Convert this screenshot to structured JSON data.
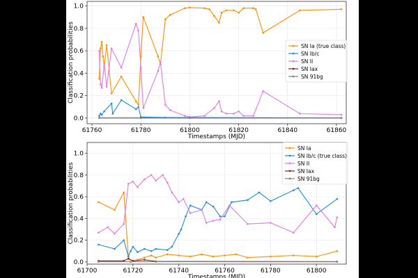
{
  "chart_data": [
    {
      "type": "line",
      "title": "",
      "xlabel": "Timestamps (MJD)",
      "ylabel": "Classification probabilities",
      "xlim": [
        61758,
        61864
      ],
      "ylim": [
        -0.05,
        1.04
      ],
      "xticks": [
        61760,
        61780,
        61800,
        61820,
        61840,
        61860
      ],
      "yticks": [
        0.0,
        0.2,
        0.4,
        0.6,
        0.8,
        1.0
      ],
      "grid": true,
      "legend_position": "center-right",
      "series": [
        {
          "name": "SN Ia (true class)",
          "color": "#ff8c00",
          "x": [
            61763,
            61763.5,
            61764,
            61764.5,
            61765,
            61766,
            61768,
            61772,
            61778,
            61779,
            61780,
            61781,
            61787,
            61788,
            61790,
            61792,
            61798,
            61800,
            61806,
            61808,
            61810,
            61812,
            61813,
            61815,
            61818,
            61820,
            61822,
            61826,
            61827,
            61830,
            61845,
            61862
          ],
          "y": [
            0.35,
            0.62,
            0.68,
            0.55,
            0.46,
            0.65,
            0.22,
            0.37,
            0.15,
            0.12,
            0.55,
            0.9,
            0.55,
            0.48,
            0.88,
            0.92,
            0.98,
            0.985,
            0.98,
            0.97,
            0.91,
            0.85,
            0.94,
            0.96,
            0.96,
            0.94,
            0.98,
            0.98,
            0.97,
            0.76,
            0.96,
            0.97
          ]
        },
        {
          "name": "SN Ib/c",
          "color": "#1f8ad6",
          "x": [
            61763,
            61763.5,
            61764,
            61765,
            61768,
            61768.5,
            61772,
            61778,
            61779,
            61780,
            61790,
            61800,
            61862
          ],
          "y": [
            0.02,
            0.04,
            0.03,
            0.06,
            0.13,
            0.04,
            0.16,
            0.08,
            0.1,
            0.01,
            0.005,
            0.005,
            0.002
          ]
        },
        {
          "name": "SN II",
          "color": "#e278e6",
          "x": [
            61763,
            61763.5,
            61764,
            61765,
            61766,
            61768,
            61772,
            61778,
            61779,
            61780,
            61781,
            61787,
            61788,
            61790,
            61792,
            61798,
            61800,
            61806,
            61810,
            61812,
            61813,
            61815,
            61818,
            61820,
            61822,
            61826,
            61830,
            61845,
            61862
          ],
          "y": [
            0.6,
            0.3,
            0.27,
            0.48,
            0.28,
            0.62,
            0.45,
            0.84,
            0.78,
            0.45,
            0.09,
            0.42,
            0.5,
            0.12,
            0.07,
            0.02,
            0.01,
            0.02,
            0.09,
            0.15,
            0.06,
            0.04,
            0.04,
            0.06,
            0.02,
            0.02,
            0.24,
            0.04,
            0.03
          ]
        },
        {
          "name": "SN Iax",
          "color": "#8b1a1a",
          "x": [
            61763,
            61780,
            61800,
            61862
          ],
          "y": [
            0.002,
            0.002,
            0.001,
            0.001
          ]
        },
        {
          "name": "SN 91bg",
          "color": "#7f7f7f",
          "x": [
            61763,
            61780,
            61800,
            61862
          ],
          "y": [
            0.001,
            0.001,
            0.001,
            0.001
          ]
        }
      ]
    },
    {
      "type": "line",
      "title": "",
      "xlabel": "Timestamps (MJD)",
      "ylabel": "Classification probabilities",
      "xlim": [
        61700,
        61813
      ],
      "ylim": [
        -0.02,
        1.1
      ],
      "xticks": [
        61700,
        61720,
        61740,
        61760,
        61780,
        61800
      ],
      "yticks": [
        0.0,
        0.2,
        0.4,
        0.6,
        0.8,
        1.0
      ],
      "grid": true,
      "legend_position": "top-right",
      "series": [
        {
          "name": "SN Ia",
          "color": "#ff8c00",
          "x": [
            61705,
            61712,
            61716,
            61718,
            61719,
            61722,
            61725,
            61728,
            61730,
            61735,
            61740,
            61745,
            61750,
            61755,
            61760,
            61765,
            61770,
            61780,
            61790,
            61800,
            61809
          ],
          "y": [
            0.55,
            0.48,
            0.64,
            0.05,
            0.0,
            0.02,
            0.04,
            0.06,
            0.04,
            0.07,
            0.06,
            0.05,
            0.07,
            0.05,
            0.06,
            0.07,
            0.04,
            0.05,
            0.06,
            0.05,
            0.1
          ]
        },
        {
          "name": "SN Ib/c (true class)",
          "color": "#1f8ad6",
          "x": [
            61705,
            61712,
            61716,
            61718,
            61719,
            61720,
            61722,
            61725,
            61728,
            61730,
            61735,
            61737,
            61740,
            61741,
            61743,
            61745,
            61750,
            61752,
            61755,
            61758,
            61760,
            61763,
            61770,
            61775,
            61780,
            61790,
            61792,
            61800,
            61809
          ],
          "y": [
            0.16,
            0.12,
            0.2,
            0.05,
            0.1,
            0.14,
            0.09,
            0.12,
            0.1,
            0.12,
            0.11,
            0.14,
            0.26,
            0.3,
            0.42,
            0.52,
            0.48,
            0.55,
            0.51,
            0.42,
            0.42,
            0.55,
            0.57,
            0.64,
            0.56,
            0.66,
            0.68,
            0.44,
            0.58
          ]
        },
        {
          "name": "SN II",
          "color": "#e278e6",
          "x": [
            61705,
            61709,
            61712,
            61716,
            61718,
            61720,
            61722,
            61725,
            61728,
            61730,
            61733,
            61735,
            61737,
            61740,
            61742,
            61745,
            61750,
            61752,
            61755,
            61758,
            61762,
            61770,
            61780,
            61790,
            61800,
            61808,
            61809
          ],
          "y": [
            0.27,
            0.32,
            0.26,
            0.35,
            0.72,
            0.74,
            0.69,
            0.76,
            0.8,
            0.75,
            0.8,
            0.73,
            0.64,
            0.55,
            0.58,
            0.45,
            0.48,
            0.36,
            0.38,
            0.39,
            0.52,
            0.35,
            0.36,
            0.27,
            0.52,
            0.32,
            0.41
          ]
        },
        {
          "name": "SN Iax",
          "color": "#8b1a1a",
          "x": [
            61705,
            61716,
            61718,
            61720,
            61725,
            61730,
            61809
          ],
          "y": [
            0.01,
            0.01,
            0.03,
            0.01,
            0.02,
            0.005,
            0.003
          ]
        },
        {
          "name": "SN 91bg",
          "color": "#7f7f7f",
          "x": [
            61705,
            61730,
            61809
          ],
          "y": [
            0.002,
            0.002,
            0.001
          ]
        }
      ]
    }
  ]
}
